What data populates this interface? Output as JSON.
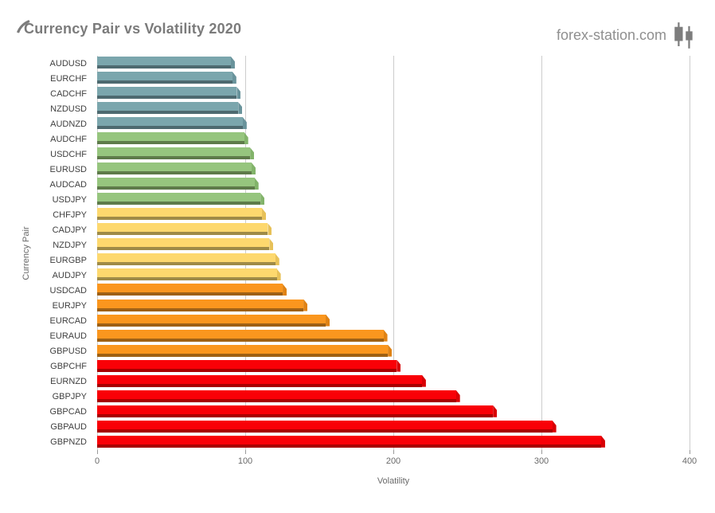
{
  "header": {
    "title": "Currency Pair vs Volatility 2020",
    "brand": "forex-station.com"
  },
  "chart_data": {
    "type": "bar",
    "orientation": "horizontal",
    "title": "Currency Pair vs Volatility 2020",
    "xlabel": "Volatility",
    "ylabel": "Currency Pair",
    "xlim": [
      0,
      400
    ],
    "xticks": [
      0,
      100,
      200,
      300,
      400
    ],
    "grid": true,
    "legend": "none",
    "categories": [
      "AUDUSD",
      "EURCHF",
      "CADCHF",
      "NZDUSD",
      "AUDNZD",
      "AUDCHF",
      "USDCHF",
      "EURUSD",
      "AUDCAD",
      "USDJPY",
      "CHFJPY",
      "CADJPY",
      "NZDJPY",
      "EURGBP",
      "AUDJPY",
      "USDCAD",
      "EURJPY",
      "EURCAD",
      "EURAUD",
      "GBPUSD",
      "GBPCHF",
      "EURNZD",
      "GBPJPY",
      "GBPCAD",
      "GBPAUD",
      "GBPNZD"
    ],
    "values": [
      93,
      94,
      97,
      98,
      101,
      102,
      106,
      107,
      109,
      113,
      114,
      118,
      119,
      123,
      124,
      128,
      142,
      157,
      196,
      199,
      205,
      222,
      245,
      270,
      310,
      343
    ],
    "bar_color_groups": [
      "blue",
      "blue",
      "blue",
      "blue",
      "blue",
      "green",
      "green",
      "green",
      "green",
      "green",
      "yellow",
      "yellow",
      "yellow",
      "yellow",
      "yellow",
      "orange",
      "orange",
      "orange",
      "orange",
      "orange",
      "red",
      "red",
      "red",
      "red",
      "red",
      "red"
    ],
    "palette": {
      "blue": {
        "face": "#7BA6AD",
        "edge": "#4E6A70",
        "cap": "#69939B"
      },
      "green": {
        "face": "#96C57E",
        "edge": "#5E7B4A",
        "cap": "#82B36A"
      },
      "yellow": {
        "face": "#FDD86E",
        "edge": "#9F8B47",
        "cap": "#E7C159"
      },
      "orange": {
        "face": "#FA961E",
        "edge": "#9E6014",
        "cap": "#DF8214"
      },
      "red": {
        "face": "#F90007",
        "edge": "#A80000",
        "cap": "#D80004"
      }
    },
    "grid_color": "#cccccc",
    "tick_color": "#999999"
  }
}
